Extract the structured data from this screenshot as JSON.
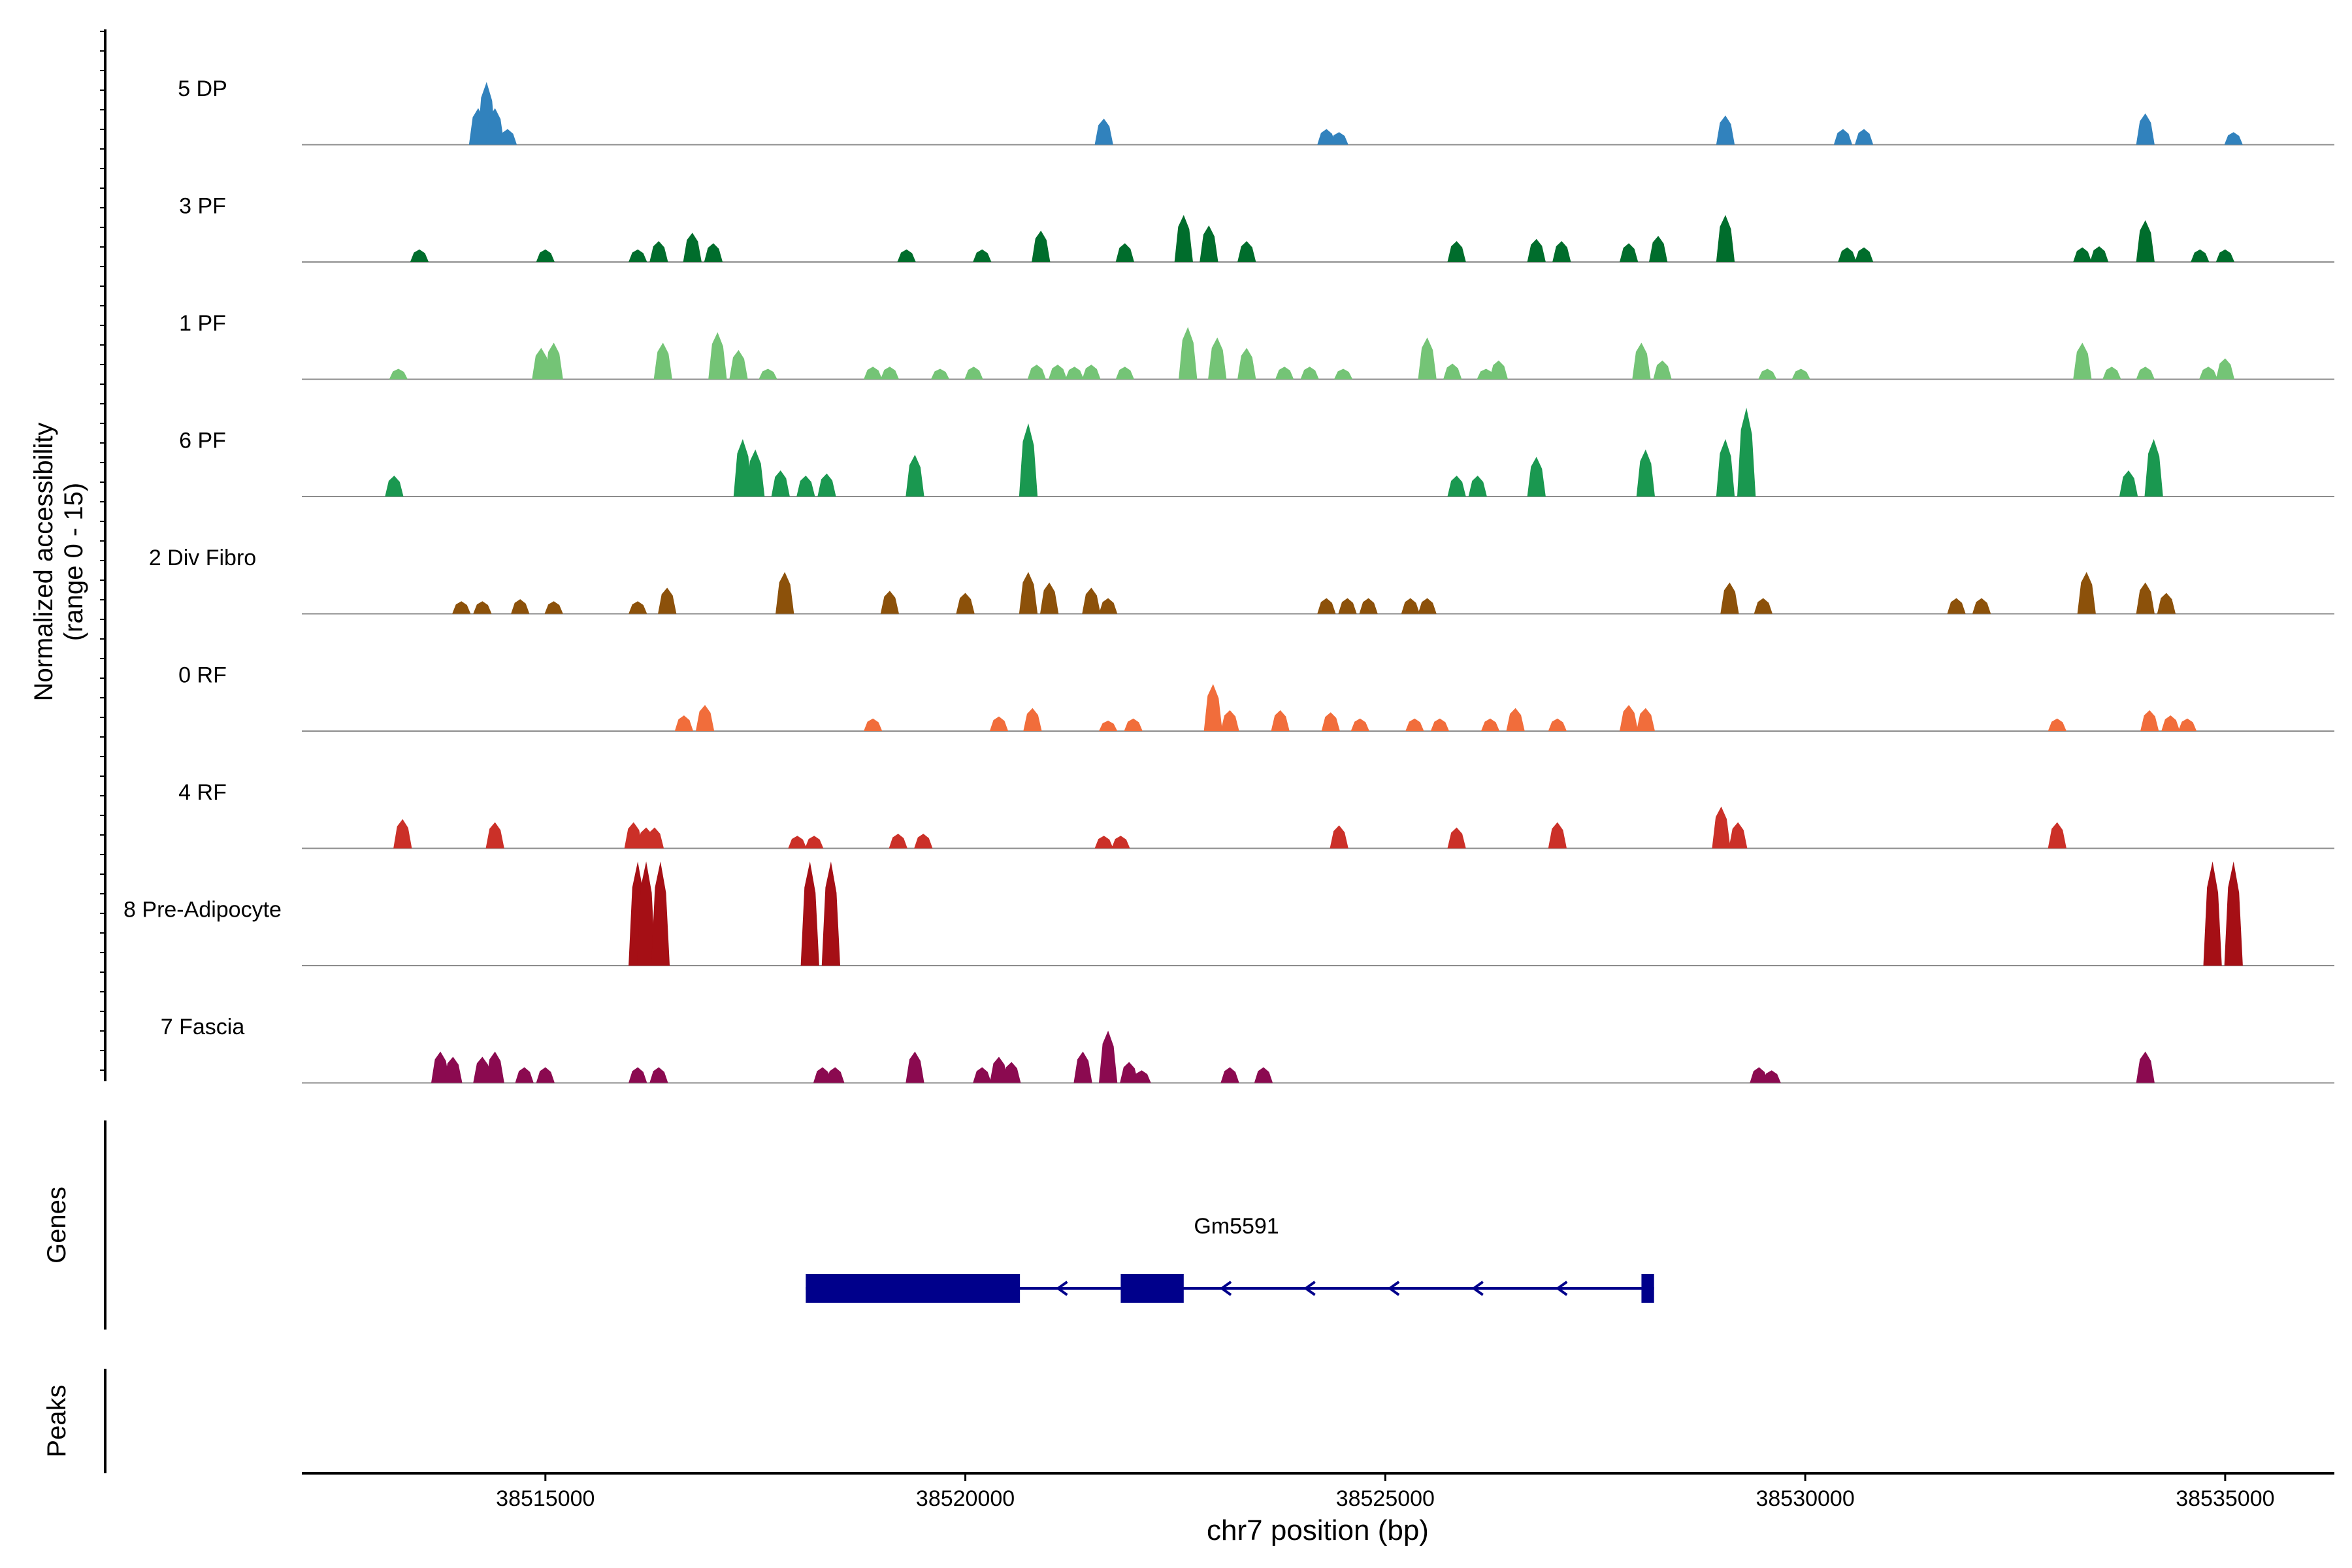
{
  "chart_data": {
    "type": "area",
    "title": "",
    "chromosome": "chr7",
    "xlabel": "chr7 position (bp)",
    "ylabel_line1": "Normalized accessibility",
    "ylabel_line2": "(range 0 - 15)",
    "yrange": [
      0,
      15
    ],
    "xlim": [
      38512100,
      38536300
    ],
    "xticks": [
      38515000,
      38520000,
      38525000,
      38530000,
      38535000
    ],
    "xtick_labels": [
      "38515000",
      "38520000",
      "38525000",
      "38530000",
      "38535000"
    ],
    "panel_labels": {
      "genes": "Genes",
      "peaks": "Peaks"
    },
    "series": [
      {
        "name": "5 DP",
        "color": "#3182bd",
        "peaks": [
          [
            38514200,
            0.35
          ],
          [
            38514300,
            0.6
          ],
          [
            38514400,
            0.35
          ],
          [
            38514550,
            0.15
          ],
          [
            38521650,
            0.25
          ],
          [
            38524300,
            0.15
          ],
          [
            38524450,
            0.12
          ],
          [
            38529050,
            0.28
          ],
          [
            38530450,
            0.15
          ],
          [
            38530700,
            0.15
          ],
          [
            38534050,
            0.3
          ],
          [
            38535100,
            0.12
          ]
        ]
      },
      {
        "name": "3 PF",
        "color": "#006d2c",
        "peaks": [
          [
            38513500,
            0.12
          ],
          [
            38515000,
            0.12
          ],
          [
            38516100,
            0.12
          ],
          [
            38516350,
            0.2
          ],
          [
            38516750,
            0.28
          ],
          [
            38517000,
            0.18
          ],
          [
            38519300,
            0.12
          ],
          [
            38520200,
            0.12
          ],
          [
            38520900,
            0.3
          ],
          [
            38521900,
            0.18
          ],
          [
            38522600,
            0.45
          ],
          [
            38522900,
            0.35
          ],
          [
            38523350,
            0.2
          ],
          [
            38525850,
            0.2
          ],
          [
            38526800,
            0.22
          ],
          [
            38527100,
            0.2
          ],
          [
            38527900,
            0.18
          ],
          [
            38528250,
            0.25
          ],
          [
            38529050,
            0.45
          ],
          [
            38530500,
            0.14
          ],
          [
            38530700,
            0.14
          ],
          [
            38533300,
            0.14
          ],
          [
            38533500,
            0.15
          ],
          [
            38534050,
            0.4
          ],
          [
            38534700,
            0.12
          ],
          [
            38535000,
            0.12
          ]
        ]
      },
      {
        "name": "1 PF",
        "color": "#74c476",
        "peaks": [
          [
            38513250,
            0.1
          ],
          [
            38514950,
            0.3
          ],
          [
            38515100,
            0.35
          ],
          [
            38516400,
            0.35
          ],
          [
            38517050,
            0.45
          ],
          [
            38517300,
            0.28
          ],
          [
            38517650,
            0.1
          ],
          [
            38518900,
            0.12
          ],
          [
            38519100,
            0.12
          ],
          [
            38519700,
            0.1
          ],
          [
            38520100,
            0.12
          ],
          [
            38520850,
            0.14
          ],
          [
            38521100,
            0.14
          ],
          [
            38521300,
            0.12
          ],
          [
            38521500,
            0.14
          ],
          [
            38521900,
            0.12
          ],
          [
            38522650,
            0.5
          ],
          [
            38523000,
            0.4
          ],
          [
            38523350,
            0.3
          ],
          [
            38523800,
            0.12
          ],
          [
            38524100,
            0.12
          ],
          [
            38524500,
            0.1
          ],
          [
            38525500,
            0.4
          ],
          [
            38525800,
            0.15
          ],
          [
            38526200,
            0.1
          ],
          [
            38526350,
            0.18
          ],
          [
            38528050,
            0.35
          ],
          [
            38528300,
            0.18
          ],
          [
            38529550,
            0.1
          ],
          [
            38529950,
            0.1
          ],
          [
            38533300,
            0.35
          ],
          [
            38533650,
            0.12
          ],
          [
            38534050,
            0.12
          ],
          [
            38534800,
            0.12
          ],
          [
            38535000,
            0.2
          ]
        ]
      },
      {
        "name": "6 PF",
        "color": "#1a9850",
        "peaks": [
          [
            38513200,
            0.2
          ],
          [
            38517350,
            0.55
          ],
          [
            38517500,
            0.45
          ],
          [
            38517800,
            0.25
          ],
          [
            38518100,
            0.2
          ],
          [
            38518350,
            0.22
          ],
          [
            38519400,
            0.4
          ],
          [
            38520750,
            0.7
          ],
          [
            38525850,
            0.2
          ],
          [
            38526100,
            0.2
          ],
          [
            38526800,
            0.38
          ],
          [
            38528100,
            0.45
          ],
          [
            38529050,
            0.55
          ],
          [
            38529300,
            0.85
          ],
          [
            38533850,
            0.25
          ],
          [
            38534150,
            0.55
          ]
        ]
      },
      {
        "name": "2 Div Fibro",
        "color": "#8c510a",
        "peaks": [
          [
            38514000,
            0.12
          ],
          [
            38514250,
            0.12
          ],
          [
            38514700,
            0.14
          ],
          [
            38515100,
            0.12
          ],
          [
            38516100,
            0.12
          ],
          [
            38516450,
            0.25
          ],
          [
            38517850,
            0.4
          ],
          [
            38519100,
            0.22
          ],
          [
            38520000,
            0.2
          ],
          [
            38520750,
            0.4
          ],
          [
            38521000,
            0.3
          ],
          [
            38521500,
            0.25
          ],
          [
            38521700,
            0.15
          ],
          [
            38524300,
            0.15
          ],
          [
            38524550,
            0.15
          ],
          [
            38524800,
            0.15
          ],
          [
            38525300,
            0.15
          ],
          [
            38525500,
            0.15
          ],
          [
            38529100,
            0.3
          ],
          [
            38529500,
            0.15
          ],
          [
            38531800,
            0.15
          ],
          [
            38532100,
            0.15
          ],
          [
            38533350,
            0.4
          ],
          [
            38534050,
            0.3
          ],
          [
            38534300,
            0.2
          ]
        ]
      },
      {
        "name": "0 RF",
        "color": "#f16d3b",
        "peaks": [
          [
            38516650,
            0.15
          ],
          [
            38516900,
            0.25
          ],
          [
            38518900,
            0.12
          ],
          [
            38520400,
            0.14
          ],
          [
            38520800,
            0.22
          ],
          [
            38521700,
            0.1
          ],
          [
            38522000,
            0.12
          ],
          [
            38522950,
            0.45
          ],
          [
            38523150,
            0.2
          ],
          [
            38523750,
            0.2
          ],
          [
            38524350,
            0.18
          ],
          [
            38524700,
            0.12
          ],
          [
            38525350,
            0.12
          ],
          [
            38525650,
            0.12
          ],
          [
            38526250,
            0.12
          ],
          [
            38526550,
            0.22
          ],
          [
            38527050,
            0.12
          ],
          [
            38527900,
            0.25
          ],
          [
            38528100,
            0.22
          ],
          [
            38533000,
            0.12
          ],
          [
            38534100,
            0.2
          ],
          [
            38534350,
            0.15
          ],
          [
            38534550,
            0.12
          ]
        ]
      },
      {
        "name": "4 RF",
        "color": "#cb3028",
        "peaks": [
          [
            38513300,
            0.28
          ],
          [
            38514400,
            0.25
          ],
          [
            38516050,
            0.25
          ],
          [
            38516200,
            0.2
          ],
          [
            38516300,
            0.2
          ],
          [
            38518000,
            0.12
          ],
          [
            38518200,
            0.12
          ],
          [
            38519200,
            0.14
          ],
          [
            38519500,
            0.14
          ],
          [
            38521650,
            0.12
          ],
          [
            38521850,
            0.12
          ],
          [
            38524450,
            0.22
          ],
          [
            38525850,
            0.2
          ],
          [
            38527050,
            0.25
          ],
          [
            38529000,
            0.4
          ],
          [
            38529200,
            0.25
          ],
          [
            38533000,
            0.25
          ]
        ]
      },
      {
        "name": "8 Pre-Adipocyte",
        "color": "#a50f15",
        "peaks": [
          [
            38516100,
            2.1
          ],
          [
            38516200,
            1.05
          ],
          [
            38516370,
            1.05
          ],
          [
            38518150,
            1.05
          ],
          [
            38518400,
            1.05
          ],
          [
            38534850,
            1.05
          ],
          [
            38535100,
            1.05
          ]
        ]
      },
      {
        "name": "7 Fascia",
        "color": "#8b0a50",
        "peaks": [
          [
            38513750,
            0.3
          ],
          [
            38513900,
            0.25
          ],
          [
            38514250,
            0.25
          ],
          [
            38514400,
            0.3
          ],
          [
            38514750,
            0.15
          ],
          [
            38515000,
            0.15
          ],
          [
            38516100,
            0.15
          ],
          [
            38516350,
            0.15
          ],
          [
            38518300,
            0.15
          ],
          [
            38518450,
            0.15
          ],
          [
            38519400,
            0.3
          ],
          [
            38520200,
            0.15
          ],
          [
            38520400,
            0.25
          ],
          [
            38520550,
            0.2
          ],
          [
            38521400,
            0.3
          ],
          [
            38521700,
            0.5
          ],
          [
            38521950,
            0.2
          ],
          [
            38522100,
            0.12
          ],
          [
            38523150,
            0.15
          ],
          [
            38523550,
            0.15
          ],
          [
            38529450,
            0.15
          ],
          [
            38529600,
            0.12
          ],
          [
            38534050,
            0.3
          ]
        ]
      }
    ],
    "genes": [
      {
        "name": "Gm5591",
        "color": "#00008b",
        "strand": "-",
        "start": 38518100,
        "end": 38528200,
        "exons": [
          [
            38518100,
            38520650
          ],
          [
            38521850,
            38522600
          ],
          [
            38528050,
            38528200
          ]
        ]
      }
    ]
  }
}
